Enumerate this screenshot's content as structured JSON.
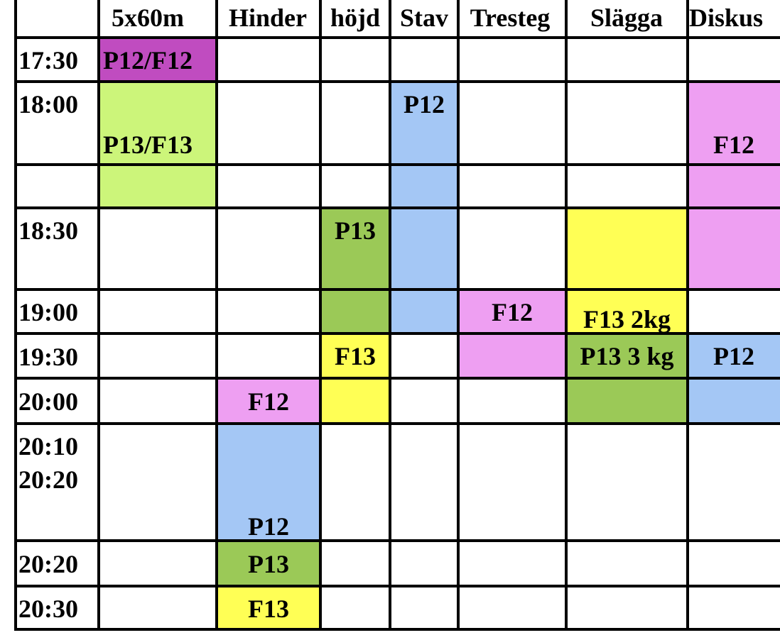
{
  "colors": {
    "purple": "#c04cc0",
    "light_green": "#ccf57a",
    "green": "#9bc957",
    "blue": "#a4c7f5",
    "pink": "#ee9ff2",
    "yellow": "#ffff55"
  },
  "headers": [
    "5x60m",
    "Hinder",
    "höjd",
    "Stav",
    "Tresteg",
    "Slägga",
    "Diskus"
  ],
  "times": [
    "17:30",
    "18:00",
    "",
    "18:30",
    "19:00",
    "19:30",
    "20:00",
    "20:10\n20:20",
    "20:20",
    "20:30"
  ],
  "blocks": [
    {
      "col": 0,
      "r0": 0,
      "r1": 0,
      "color": "purple",
      "text": "P12/F12",
      "valign": "middle",
      "align": "left"
    },
    {
      "col": 0,
      "r0": 1,
      "r1": 2,
      "color": "light_green",
      "text": "P13/F13",
      "valign": "mid-row1",
      "align": "left"
    },
    {
      "col": 3,
      "r0": 1,
      "r1": 4,
      "color": "blue",
      "text": "P12",
      "valign": "top",
      "align": "center"
    },
    {
      "col": 6,
      "r0": 1,
      "r1": 3,
      "color": "pink",
      "text": "F12",
      "valign": "mid-row1",
      "align": "center"
    },
    {
      "col": 2,
      "r0": 3,
      "r1": 4,
      "color": "green",
      "text": "P13",
      "valign": "top",
      "align": "center"
    },
    {
      "col": 5,
      "r0": 3,
      "r1": 4,
      "color": "yellow",
      "text": "F13 2kg",
      "valign": "bottom",
      "align": "center"
    },
    {
      "col": 4,
      "r0": 4,
      "r1": 5,
      "color": "pink",
      "text": "F12",
      "valign": "top",
      "align": "center"
    },
    {
      "col": 2,
      "r0": 5,
      "r1": 6,
      "color": "yellow",
      "text": "F13",
      "valign": "top",
      "align": "center"
    },
    {
      "col": 5,
      "r0": 5,
      "r1": 6,
      "color": "green",
      "text": "P13 3 kg",
      "valign": "top",
      "align": "center"
    },
    {
      "col": 6,
      "r0": 5,
      "r1": 6,
      "color": "blue",
      "text": "P12",
      "valign": "top",
      "align": "center"
    },
    {
      "col": 1,
      "r0": 6,
      "r1": 6,
      "color": "pink",
      "text": "F12",
      "valign": "middle",
      "align": "center"
    },
    {
      "col": 1,
      "r0": 7,
      "r1": 7,
      "color": "blue",
      "text": "P12",
      "valign": "bottom",
      "align": "center"
    },
    {
      "col": 1,
      "r0": 8,
      "r1": 8,
      "color": "green",
      "text": "P13",
      "valign": "middle",
      "align": "center"
    },
    {
      "col": 1,
      "r0": 9,
      "r1": 9,
      "color": "yellow",
      "text": "F13",
      "valign": "middle",
      "align": "center"
    }
  ]
}
